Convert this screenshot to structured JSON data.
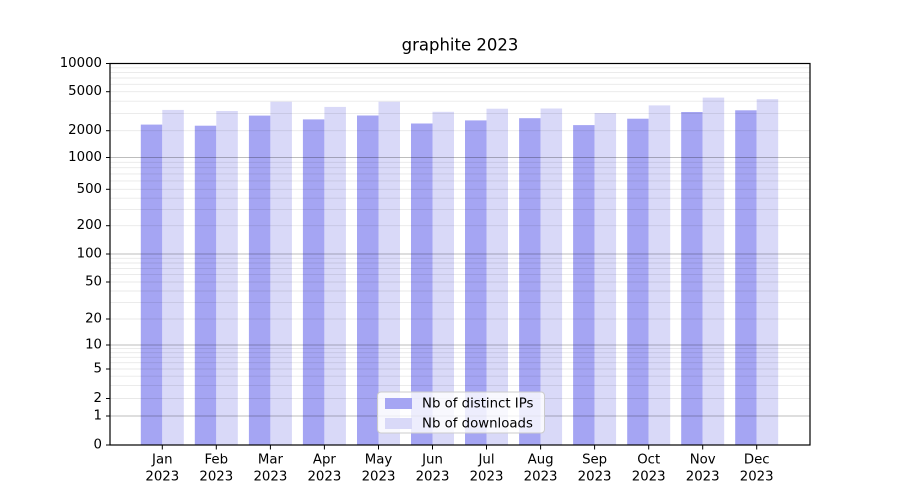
{
  "chart_data": {
    "type": "bar",
    "title": "graphite 2023",
    "categories": [
      "Jan",
      "Feb",
      "Mar",
      "Apr",
      "May",
      "Jun",
      "Jul",
      "Aug",
      "Sep",
      "Oct",
      "Nov",
      "Dec"
    ],
    "year_label": "2023",
    "series": [
      {
        "name": "Nb of distinct IPs",
        "color": "#a5a5f3",
        "values": [
          2310,
          2250,
          2850,
          2610,
          2860,
          2370,
          2550,
          2680,
          2280,
          2650,
          3100,
          3230
        ]
      },
      {
        "name": "Nb of downloads",
        "color": "#d9d9f8",
        "values": [
          3260,
          3180,
          3950,
          3500,
          3950,
          3120,
          3350,
          3370,
          3030,
          3620,
          4350,
          4190
        ]
      }
    ],
    "y_ticks": [
      0,
      1,
      2,
      5,
      10,
      20,
      50,
      100,
      200,
      500,
      1000,
      2000,
      5000,
      10000
    ],
    "ylim": [
      0,
      10000
    ],
    "yscale": "symlog",
    "grid": "on",
    "legend_position": "lower center",
    "colors": {
      "grid_minor": "#eaeaea",
      "grid_major": "#c2c2c2",
      "spine": "#000000",
      "legend_border": "#cccccc",
      "legend_background": "rgba(255,255,255,0.8)"
    }
  }
}
